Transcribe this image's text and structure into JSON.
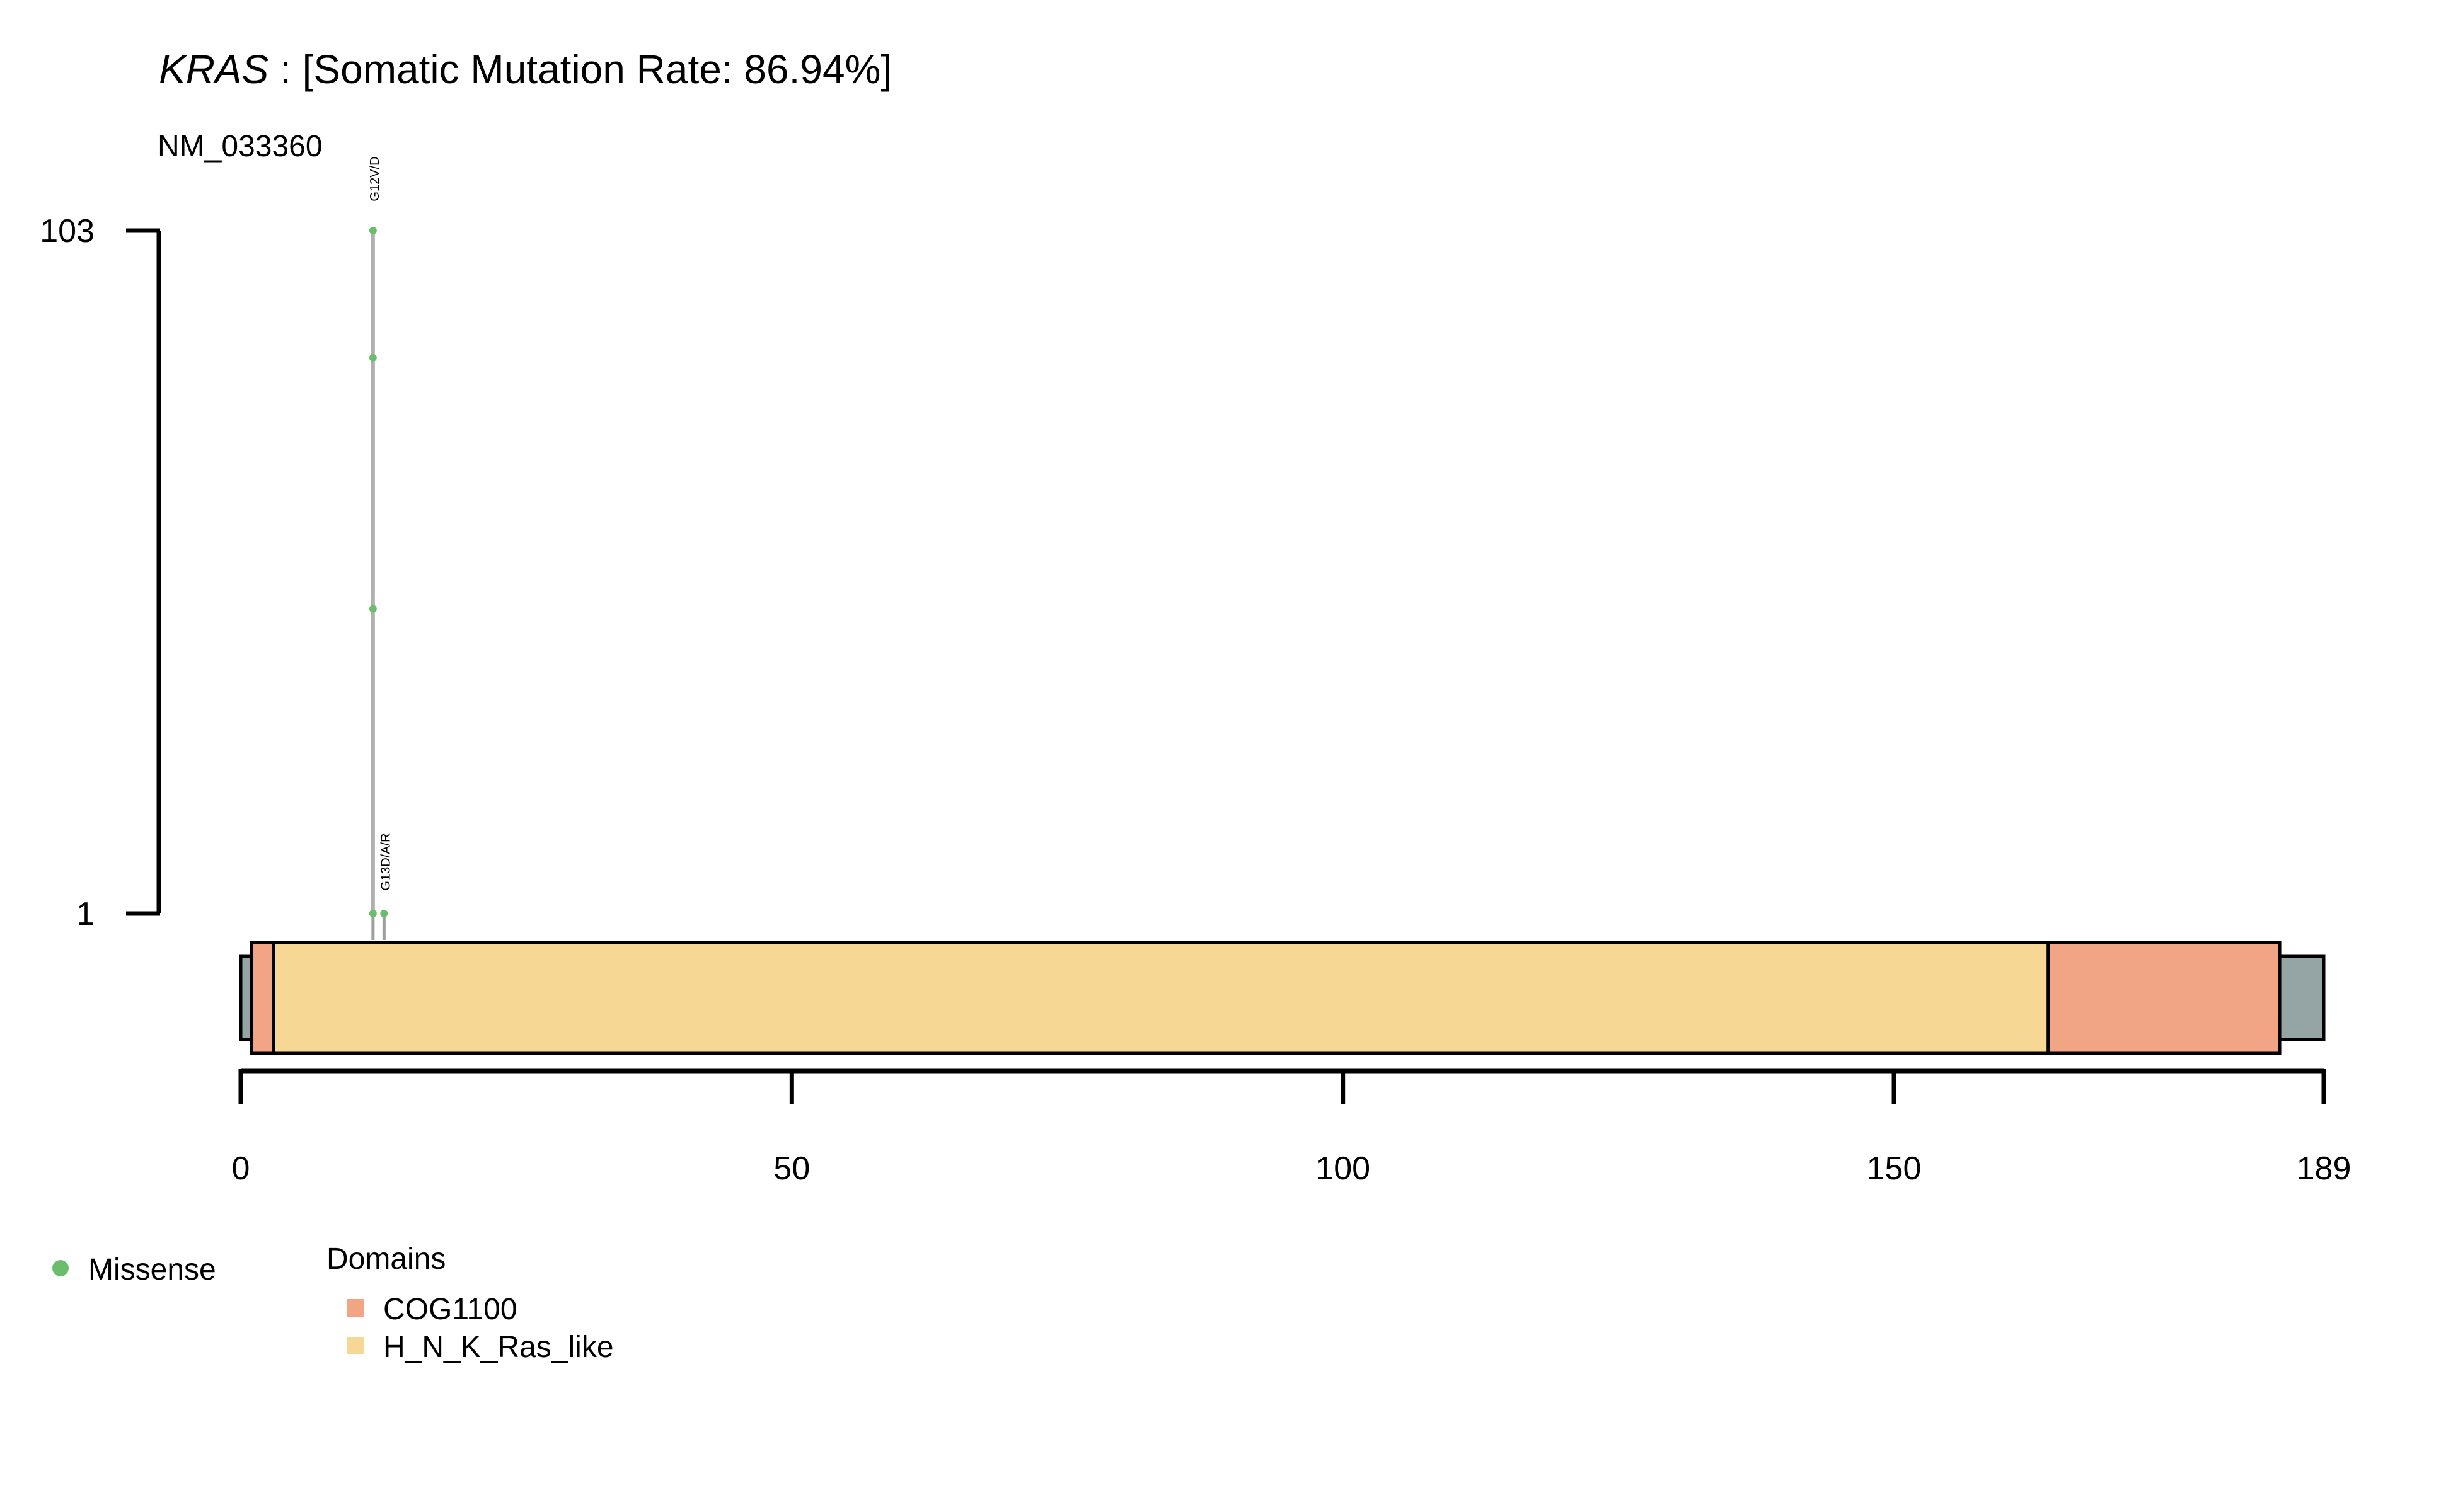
{
  "title": {
    "gene": "KRAS",
    "rest": " : [Somatic Mutation Rate: 86.94%]"
  },
  "transcript": "NM_033360",
  "chart_data": {
    "type": "lollipop",
    "protein_length": 189,
    "x_ticks": [
      0,
      50,
      100,
      150,
      189
    ],
    "y_ticks": [
      1,
      103
    ],
    "y_range": [
      1,
      103
    ],
    "domains": [
      {
        "name": "COG1100",
        "start": 1,
        "end": 3,
        "color": "#F2A584"
      },
      {
        "name": "H_N_K_Ras_like",
        "start": 3,
        "end": 164,
        "color": "#F7D794"
      },
      {
        "name": "COG1100",
        "start": 164,
        "end": 185,
        "color": "#F2A584"
      }
    ],
    "backbone_color": "#95A5A6",
    "mutations": [
      {
        "label": "G12V/D",
        "position": 12,
        "count": 103,
        "dots": [
          1,
          46.5,
          84,
          103
        ],
        "type": "Missense"
      },
      {
        "label": "G13D/A/R",
        "position": 13,
        "count": 1,
        "dots": [
          1
        ],
        "type": "Missense"
      }
    ],
    "legend": {
      "variants": [
        {
          "name": "Missense",
          "color": "#6ABD6A"
        }
      ],
      "domains_title": "Domains",
      "domains": [
        {
          "name": "COG1100",
          "color": "#F2A584"
        },
        {
          "name": "H_N_K_Ras_like",
          "color": "#F7D794"
        }
      ]
    }
  }
}
